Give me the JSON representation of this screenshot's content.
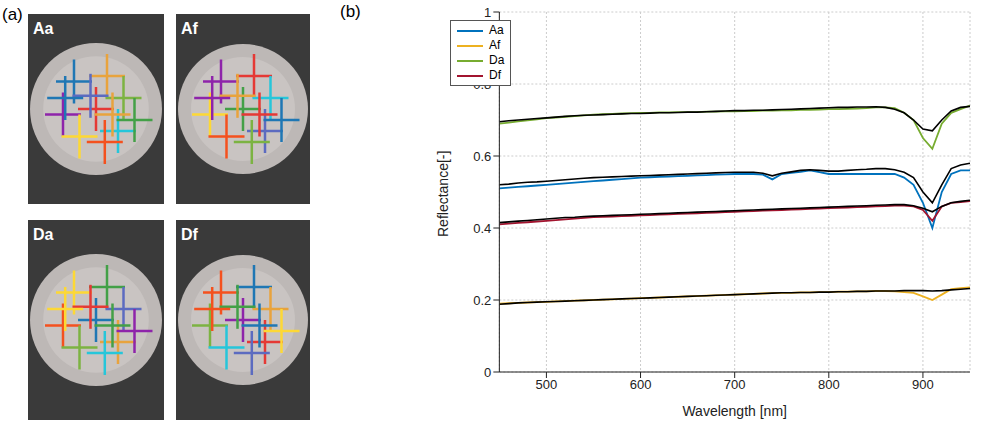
{
  "panels": {
    "a": {
      "label": "(a)",
      "image_labels": [
        "Aa",
        "Af",
        "Da",
        "Df"
      ]
    },
    "b": {
      "label": "(b)"
    }
  },
  "chart_data": {
    "type": "line",
    "x_label": "Wavelength [nm]",
    "y_label": "Reflectance[-]",
    "x": [
      450,
      460,
      470,
      480,
      490,
      500,
      510,
      520,
      530,
      540,
      550,
      560,
      570,
      580,
      590,
      600,
      610,
      620,
      630,
      640,
      650,
      660,
      670,
      680,
      690,
      700,
      710,
      720,
      730,
      740,
      750,
      760,
      770,
      780,
      790,
      800,
      810,
      820,
      830,
      840,
      850,
      860,
      870,
      880,
      890,
      900,
      910,
      920,
      930,
      940,
      950
    ],
    "xlim": [
      450,
      950
    ],
    "xticks": [
      500,
      600,
      700,
      800,
      900
    ],
    "ylim": [
      0,
      1
    ],
    "yticks": [
      0,
      0.2,
      0.4,
      0.6,
      0.8,
      1
    ],
    "grid": true,
    "legend": "upper left",
    "series": [
      {
        "name": "Aa",
        "color": "#0072bd",
        "values": [
          0.51,
          0.512,
          0.514,
          0.516,
          0.518,
          0.52,
          0.522,
          0.524,
          0.526,
          0.528,
          0.53,
          0.532,
          0.534,
          0.536,
          0.538,
          0.54,
          0.541,
          0.542,
          0.543,
          0.544,
          0.545,
          0.546,
          0.547,
          0.548,
          0.549,
          0.55,
          0.55,
          0.55,
          0.548,
          0.535,
          0.55,
          0.553,
          0.556,
          0.56,
          0.555,
          0.55,
          0.55,
          0.55,
          0.55,
          0.55,
          0.55,
          0.55,
          0.55,
          0.54,
          0.52,
          0.47,
          0.4,
          0.5,
          0.55,
          0.56,
          0.56
        ]
      },
      {
        "name": "Af",
        "color": "#edb120",
        "values": [
          0.19,
          0.191,
          0.192,
          0.193,
          0.194,
          0.195,
          0.196,
          0.197,
          0.198,
          0.199,
          0.2,
          0.201,
          0.202,
          0.203,
          0.204,
          0.205,
          0.206,
          0.207,
          0.208,
          0.209,
          0.21,
          0.211,
          0.212,
          0.213,
          0.214,
          0.215,
          0.216,
          0.217,
          0.218,
          0.219,
          0.22,
          0.22,
          0.221,
          0.221,
          0.222,
          0.222,
          0.223,
          0.223,
          0.224,
          0.224,
          0.225,
          0.225,
          0.224,
          0.222,
          0.22,
          0.21,
          0.2,
          0.215,
          0.23,
          0.233,
          0.235
        ]
      },
      {
        "name": "Da",
        "color": "#77ac30",
        "values": [
          0.69,
          0.693,
          0.696,
          0.699,
          0.702,
          0.705,
          0.707,
          0.709,
          0.711,
          0.713,
          0.715,
          0.716,
          0.717,
          0.718,
          0.719,
          0.72,
          0.72,
          0.721,
          0.721,
          0.722,
          0.722,
          0.722,
          0.723,
          0.723,
          0.724,
          0.724,
          0.725,
          0.725,
          0.726,
          0.726,
          0.727,
          0.727,
          0.728,
          0.728,
          0.729,
          0.73,
          0.73,
          0.731,
          0.732,
          0.733,
          0.735,
          0.735,
          0.733,
          0.72,
          0.7,
          0.65,
          0.62,
          0.69,
          0.72,
          0.73,
          0.74
        ]
      },
      {
        "name": "Df",
        "color": "#a2142f",
        "values": [
          0.41,
          0.412,
          0.414,
          0.416,
          0.418,
          0.42,
          0.422,
          0.424,
          0.426,
          0.428,
          0.43,
          0.431,
          0.432,
          0.433,
          0.434,
          0.435,
          0.436,
          0.437,
          0.438,
          0.439,
          0.44,
          0.441,
          0.442,
          0.443,
          0.444,
          0.445,
          0.446,
          0.447,
          0.448,
          0.449,
          0.45,
          0.451,
          0.452,
          0.453,
          0.454,
          0.455,
          0.456,
          0.457,
          0.458,
          0.459,
          0.46,
          0.461,
          0.462,
          0.462,
          0.46,
          0.45,
          0.42,
          0.46,
          0.47,
          0.472,
          0.475
        ]
      },
      {
        "color": "#000000",
        "values": [
          0.52,
          0.522,
          0.525,
          0.527,
          0.528,
          0.53,
          0.532,
          0.534,
          0.536,
          0.538,
          0.54,
          0.541,
          0.542,
          0.543,
          0.544,
          0.545,
          0.546,
          0.547,
          0.548,
          0.549,
          0.55,
          0.551,
          0.552,
          0.553,
          0.554,
          0.555,
          0.555,
          0.555,
          0.552,
          0.545,
          0.552,
          0.556,
          0.56,
          0.562,
          0.56,
          0.558,
          0.558,
          0.56,
          0.562,
          0.563,
          0.565,
          0.565,
          0.562,
          0.555,
          0.54,
          0.5,
          0.47,
          0.52,
          0.565,
          0.575,
          0.58
        ]
      },
      {
        "color": "#000000",
        "values": [
          0.188,
          0.19,
          0.192,
          0.193,
          0.194,
          0.195,
          0.196,
          0.197,
          0.198,
          0.199,
          0.2,
          0.201,
          0.202,
          0.203,
          0.204,
          0.205,
          0.206,
          0.207,
          0.208,
          0.209,
          0.21,
          0.211,
          0.212,
          0.213,
          0.214,
          0.215,
          0.216,
          0.217,
          0.218,
          0.219,
          0.22,
          0.22,
          0.221,
          0.221,
          0.222,
          0.222,
          0.223,
          0.223,
          0.224,
          0.224,
          0.225,
          0.225,
          0.225,
          0.226,
          0.226,
          0.226,
          0.225,
          0.226,
          0.228,
          0.23,
          0.232
        ]
      },
      {
        "color": "#000000",
        "values": [
          0.695,
          0.698,
          0.7,
          0.702,
          0.704,
          0.706,
          0.708,
          0.71,
          0.712,
          0.713,
          0.714,
          0.715,
          0.716,
          0.717,
          0.718,
          0.718,
          0.719,
          0.72,
          0.72,
          0.721,
          0.722,
          0.722,
          0.723,
          0.724,
          0.725,
          0.726,
          0.726,
          0.727,
          0.727,
          0.728,
          0.729,
          0.73,
          0.731,
          0.732,
          0.733,
          0.734,
          0.735,
          0.735,
          0.736,
          0.736,
          0.737,
          0.735,
          0.73,
          0.72,
          0.7,
          0.675,
          0.67,
          0.7,
          0.725,
          0.735,
          0.738
        ]
      },
      {
        "color": "#000000",
        "values": [
          0.415,
          0.417,
          0.419,
          0.421,
          0.423,
          0.425,
          0.427,
          0.429,
          0.43,
          0.432,
          0.433,
          0.434,
          0.435,
          0.436,
          0.437,
          0.438,
          0.439,
          0.44,
          0.441,
          0.442,
          0.443,
          0.444,
          0.445,
          0.446,
          0.447,
          0.448,
          0.449,
          0.45,
          0.451,
          0.452,
          0.453,
          0.454,
          0.455,
          0.456,
          0.457,
          0.458,
          0.459,
          0.46,
          0.461,
          0.462,
          0.463,
          0.464,
          0.465,
          0.465,
          0.462,
          0.455,
          0.445,
          0.46,
          0.47,
          0.474,
          0.477
        ]
      }
    ]
  }
}
